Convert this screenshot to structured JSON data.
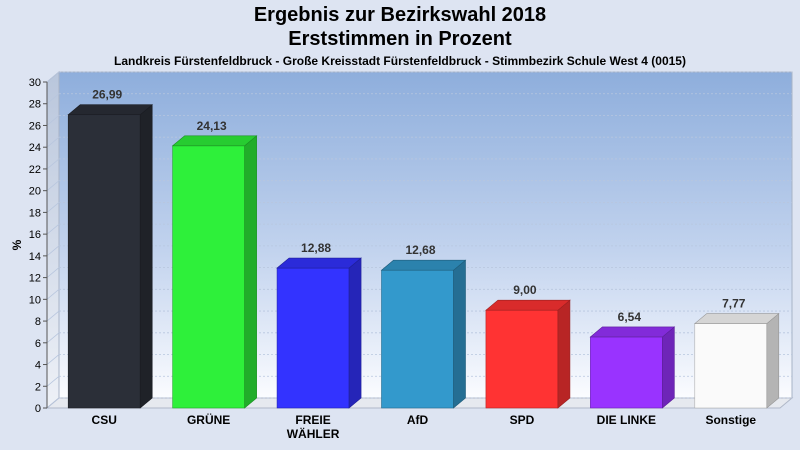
{
  "header": {
    "title_line1": "Ergebnis zur Bezirkswahl 2018",
    "title_line2": "Erststimmen in Prozent",
    "subtitle": "Landkreis Fürstenfeldbruck - Große Kreisstadt Fürstenfeldbruck - Stimmbezirk Schule West 4 (0015)"
  },
  "chart_data": {
    "type": "bar",
    "title": "Ergebnis zur Bezirkswahl 2018 Erststimmen in Prozent",
    "subtitle": "Landkreis Fürstenfeldbruck - Große Kreisstadt Fürstenfeldbruck - Stimmbezirk Schule West 4 (0015)",
    "xlabel": "",
    "ylabel": "%",
    "ylim": [
      0,
      30
    ],
    "yticks": [
      0,
      2,
      4,
      6,
      8,
      10,
      12,
      14,
      16,
      18,
      20,
      22,
      24,
      26,
      28,
      30
    ],
    "grid": true,
    "categories": [
      {
        "lines": [
          "CSU"
        ]
      },
      {
        "lines": [
          "GRÜNE"
        ]
      },
      {
        "lines": [
          "FREIE",
          "WÄHLER"
        ]
      },
      {
        "lines": [
          "AfD"
        ]
      },
      {
        "lines": [
          "SPD"
        ]
      },
      {
        "lines": [
          "DIE LINKE"
        ]
      },
      {
        "lines": [
          "Sonstige"
        ]
      }
    ],
    "values": [
      26.99,
      24.13,
      12.88,
      12.68,
      9.0,
      6.54,
      7.77
    ],
    "value_labels": [
      "26,99",
      "24,13",
      "12,88",
      "12,68",
      "9,00",
      "6,54",
      "7,77"
    ],
    "colors": [
      "#2b2f38",
      "#2ef03a",
      "#3333ff",
      "#3399cc",
      "#ff3333",
      "#9933ff",
      "#fafafa"
    ]
  }
}
